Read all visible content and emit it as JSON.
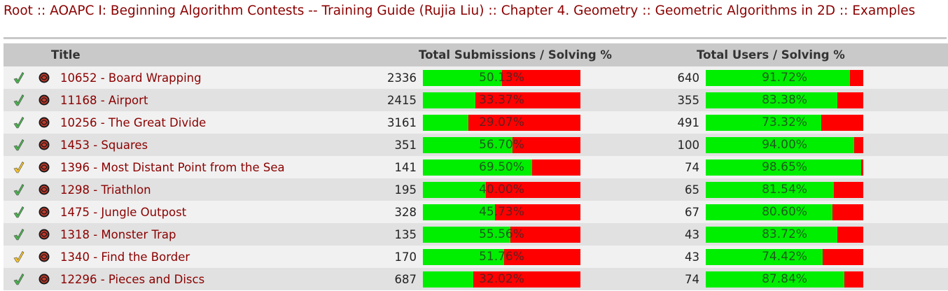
{
  "breadcrumb": {
    "items": [
      "Root",
      "AOAPC I: Beginning Algorithm Contests -- Training Guide (Rujia Liu)",
      "Chapter 4. Geometry",
      "Geometric Algorithms in 2D",
      "Examples"
    ],
    "separator": "::"
  },
  "table": {
    "headers": {
      "title": "Title",
      "submissions": "Total Submissions / Solving %",
      "users": "Total Users / Solving %"
    },
    "colors": {
      "solved": "#00ee00",
      "unsolved": "#ff0000",
      "link": "#8b0000"
    },
    "rows": [
      {
        "status": "solved",
        "title": "10652 - Board Wrapping",
        "submissions": "2336",
        "sub_pct": "50.13%",
        "sub_frac": 0.5013,
        "users": "640",
        "user_pct": "91.72%",
        "user_frac": 0.9172
      },
      {
        "status": "solved",
        "title": "11168 - Airport",
        "submissions": "2415",
        "sub_pct": "33.37%",
        "sub_frac": 0.3337,
        "users": "355",
        "user_pct": "83.38%",
        "user_frac": 0.8338
      },
      {
        "status": "solved",
        "title": "10256 - The Great Divide",
        "submissions": "3161",
        "sub_pct": "29.07%",
        "sub_frac": 0.2907,
        "users": "491",
        "user_pct": "73.32%",
        "user_frac": 0.7332
      },
      {
        "status": "solved",
        "title": "1453 - Squares",
        "submissions": "351",
        "sub_pct": "56.70%",
        "sub_frac": 0.567,
        "users": "100",
        "user_pct": "94.00%",
        "user_frac": 0.94
      },
      {
        "status": "attempted",
        "title": "1396 - Most Distant Point from the Sea",
        "submissions": "141",
        "sub_pct": "69.50%",
        "sub_frac": 0.695,
        "users": "74",
        "user_pct": "98.65%",
        "user_frac": 0.9865
      },
      {
        "status": "solved",
        "title": "1298 - Triathlon",
        "submissions": "195",
        "sub_pct": "40.00%",
        "sub_frac": 0.4,
        "users": "65",
        "user_pct": "81.54%",
        "user_frac": 0.8154
      },
      {
        "status": "solved",
        "title": "1475 - Jungle Outpost",
        "submissions": "328",
        "sub_pct": "45.73%",
        "sub_frac": 0.4573,
        "users": "67",
        "user_pct": "80.60%",
        "user_frac": 0.806
      },
      {
        "status": "solved",
        "title": "1318 - Monster Trap",
        "submissions": "135",
        "sub_pct": "55.56%",
        "sub_frac": 0.5556,
        "users": "43",
        "user_pct": "83.72%",
        "user_frac": 0.8372
      },
      {
        "status": "attempted",
        "title": "1340 - Find the Border",
        "submissions": "170",
        "sub_pct": "51.76%",
        "sub_frac": 0.5176,
        "users": "43",
        "user_pct": "74.42%",
        "user_frac": 0.7442
      },
      {
        "status": "solved",
        "title": "12296 - Pieces and Discs",
        "submissions": "687",
        "sub_pct": "32.02%",
        "sub_frac": 0.3202,
        "users": "74",
        "user_pct": "87.84%",
        "user_frac": 0.8784
      }
    ]
  }
}
